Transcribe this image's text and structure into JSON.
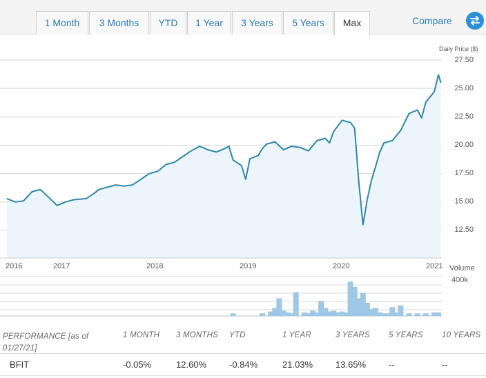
{
  "tabs": [
    {
      "label": "1 Month"
    },
    {
      "label": "3 Months"
    },
    {
      "label": "YTD"
    },
    {
      "label": "1 Year"
    },
    {
      "label": "3 Years"
    },
    {
      "label": "5 Years"
    },
    {
      "label": "Max",
      "active": true
    }
  ],
  "compare": {
    "label": "Compare",
    "icon": "swap-arrows-icon"
  },
  "chart_data": [
    {
      "type": "area",
      "ylabel": "Daily Price ($)",
      "yticks": [
        "27.50",
        "25.00",
        "22.50",
        "20.00",
        "17.50",
        "15.00",
        "12.50"
      ],
      "ylim": [
        10.8,
        27.5
      ],
      "xticks": [
        "2016",
        "2017",
        "2018",
        "2019",
        "2020",
        "2021"
      ],
      "x": [
        2015.9,
        2016.0,
        2016.1,
        2016.2,
        2016.3,
        2016.4,
        2016.5,
        2016.6,
        2016.7,
        2016.85,
        2016.95,
        2017.0,
        2017.1,
        2017.2,
        2017.3,
        2017.4,
        2017.5,
        2017.6,
        2017.7,
        2017.8,
        2017.9,
        2018.0,
        2018.1,
        2018.2,
        2018.3,
        2018.4,
        2018.5,
        2018.55,
        2018.6,
        2018.7,
        2018.75,
        2018.8,
        2018.9,
        2018.95,
        2019.0,
        2019.1,
        2019.2,
        2019.3,
        2019.4,
        2019.5,
        2019.6,
        2019.7,
        2019.75,
        2019.8,
        2019.9,
        2020.0,
        2020.05,
        2020.1,
        2020.15,
        2020.2,
        2020.25,
        2020.3,
        2020.35,
        2020.4,
        2020.5,
        2020.6,
        2020.7,
        2020.8,
        2020.85,
        2020.9,
        2021.0,
        2021.05,
        2021.08
      ],
      "values": [
        15.3,
        15.0,
        15.1,
        15.9,
        16.1,
        15.4,
        14.7,
        15.0,
        15.2,
        15.3,
        15.8,
        16.1,
        16.3,
        16.5,
        16.4,
        16.5,
        17.0,
        17.5,
        17.7,
        18.3,
        18.5,
        19.0,
        19.5,
        19.9,
        19.6,
        19.4,
        19.7,
        19.9,
        18.7,
        18.2,
        17.0,
        18.8,
        19.1,
        19.7,
        20.1,
        20.3,
        19.6,
        19.9,
        19.8,
        19.5,
        20.4,
        20.6,
        20.2,
        21.2,
        22.2,
        22.0,
        21.5,
        16.8,
        13.0,
        15.2,
        16.9,
        18.1,
        19.4,
        20.2,
        20.4,
        21.3,
        22.8,
        23.1,
        22.4,
        23.8,
        24.7,
        26.2,
        25.5
      ]
    },
    {
      "type": "bar",
      "ylabel": "Volume",
      "yticks": [
        "400k"
      ],
      "ylim": [
        0,
        400000
      ],
      "x": [
        2018.6,
        2018.95,
        2019.05,
        2019.1,
        2019.15,
        2019.2,
        2019.25,
        2019.3,
        2019.35,
        2019.45,
        2019.5,
        2019.55,
        2019.6,
        2019.65,
        2019.7,
        2019.75,
        2019.8,
        2019.85,
        2019.9,
        2019.95,
        2020.0,
        2020.05,
        2020.1,
        2020.15,
        2020.2,
        2020.25,
        2020.3,
        2020.35,
        2020.4,
        2020.45,
        2020.5,
        2020.55,
        2020.6,
        2020.7,
        2020.8,
        2020.9,
        2021.0,
        2021.05
      ],
      "values": [
        30000,
        30000,
        50000,
        90000,
        200000,
        60000,
        40000,
        30000,
        270000,
        40000,
        30000,
        60000,
        40000,
        170000,
        90000,
        50000,
        60000,
        40000,
        50000,
        40000,
        390000,
        330000,
        200000,
        260000,
        150000,
        80000,
        90000,
        40000,
        30000,
        30000,
        100000,
        40000,
        120000,
        30000,
        30000,
        30000,
        40000,
        40000
      ]
    }
  ],
  "performance": {
    "caption": "PERFORMANCE [as of 01/27/21]",
    "columns": [
      "1 MONTH",
      "3 MONTHS",
      "YTD",
      "1 YEAR",
      "3 YEARS",
      "5 YEARS",
      "10 YEARS"
    ],
    "rows": [
      {
        "ticker": "BFIT",
        "values": [
          "-0.05%",
          "12.60%",
          "-0.84%",
          "21.03%",
          "13.65%",
          "--",
          "--"
        ]
      }
    ]
  },
  "colors": {
    "line": "#2b86ad",
    "fill": "#edf5fc",
    "bar": "#9fc8e6",
    "accent": "#2a7ab8"
  }
}
